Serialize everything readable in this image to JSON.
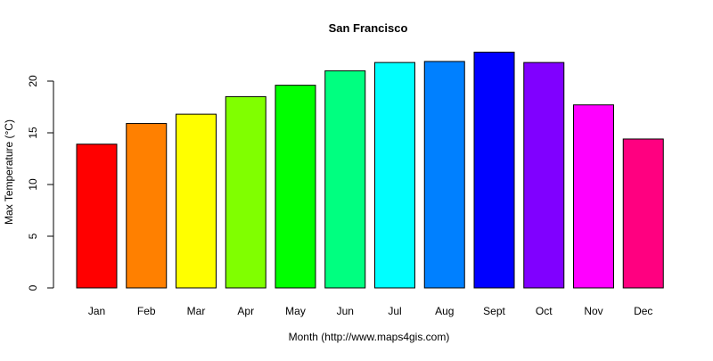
{
  "chart_data": {
    "type": "bar",
    "title": "San Francisco",
    "xlabel": "Month (http://www.maps4gis.com)",
    "ylabel": "Max Temperature (°C)",
    "categories": [
      "Jan",
      "Feb",
      "Mar",
      "Apr",
      "May",
      "Jun",
      "Jul",
      "Aug",
      "Sept",
      "Oct",
      "Nov",
      "Dec"
    ],
    "values": [
      13.9,
      15.9,
      16.8,
      18.5,
      19.6,
      21.0,
      21.8,
      21.9,
      22.8,
      21.8,
      17.7,
      14.4
    ],
    "colors": [
      "#FF0000",
      "#FF8000",
      "#FFFF00",
      "#80FF00",
      "#00FF00",
      "#00FF80",
      "#00FFFF",
      "#0080FF",
      "#0000FF",
      "#8000FF",
      "#FF00FF",
      "#FF0080"
    ],
    "yticks": [
      0,
      5,
      10,
      15,
      20
    ],
    "ylim": [
      0,
      23
    ],
    "grid": false,
    "legend": "none"
  }
}
